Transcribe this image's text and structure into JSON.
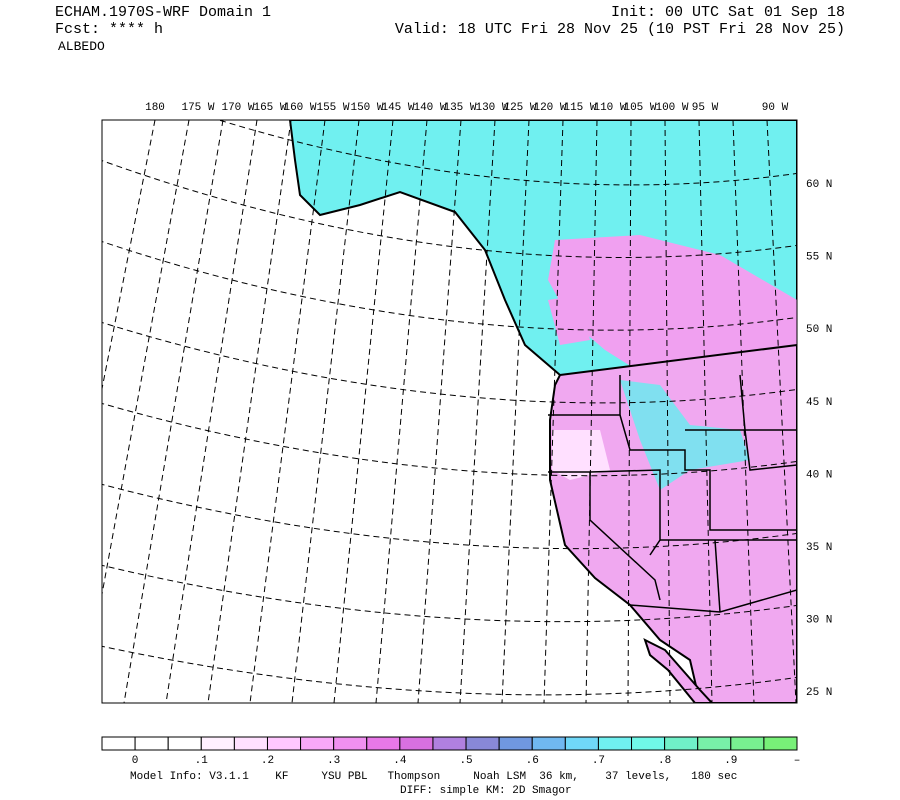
{
  "header": {
    "left": [
      "ECHAM.1970S-WRF Domain 1",
      "Fcst: **** h",
      "ALBEDO"
    ],
    "right": [
      "Init: 00 UTC Sat 01 Sep 18",
      "Valid: 18 UTC Fri 28 Nov 25 (10 PST Fri 28 Nov 25)"
    ]
  },
  "map": {
    "lon_labels": [
      "180",
      "175 W",
      "170 W",
      "165 W",
      "160 W",
      "155 W",
      "150 W",
      "145 W",
      "140 W",
      "135 W",
      "130 W",
      "125 W",
      "120 W",
      "115 W",
      "110 W",
      "105 W",
      "100 W",
      "95 W",
      "90 W"
    ],
    "lat_labels": [
      "60 N",
      "55 N",
      "50 N",
      "45 N",
      "40 N",
      "35 N",
      "30 N",
      "25 N"
    ]
  },
  "colorbar": {
    "colors": [
      "#ffffff",
      "#ffffff",
      "#ffffff",
      "#fff0ff",
      "#ffe0ff",
      "#ffc8ff",
      "#f8a8f8",
      "#f090f0",
      "#e878e8",
      "#d870e0",
      "#b080e0",
      "#8888d8",
      "#7098e0",
      "#70b8f0",
      "#70d8f8",
      "#70f0f0",
      "#70f8e8",
      "#70f0c8",
      "#78f0a8",
      "#78f090",
      "#78f078"
    ],
    "labels": [
      "0",
      ".1",
      ".2",
      ".3",
      ".4",
      ".5",
      ".6",
      ".7",
      ".8",
      ".9",
      "–"
    ]
  },
  "footer": [
    "Model Info: V3.1.1    KF     YSU PBL   Thompson     Noah LSM  36 km,    37 levels,   180 sec",
    "DIFF: simple KM: 2D Smagor"
  ]
}
